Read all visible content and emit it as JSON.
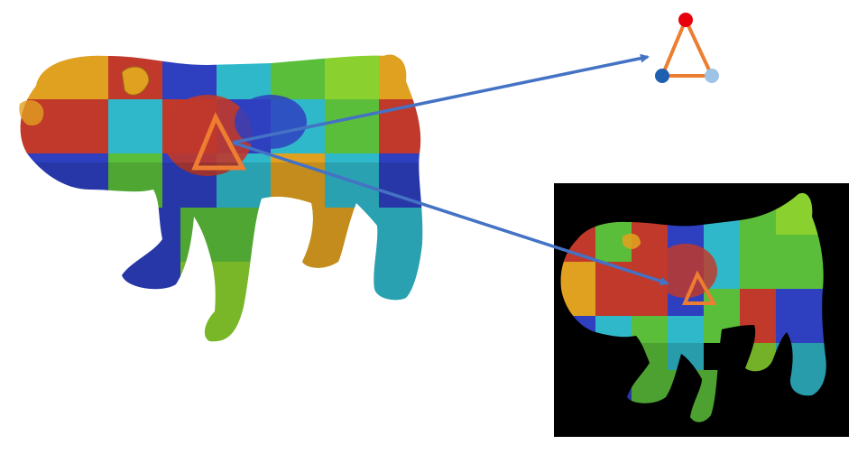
{
  "palette": {
    "marker": "#ED7D31",
    "arrow": "#4472C4",
    "vertex_top": "#E8000B",
    "vertex_left": "#1F5FAF",
    "vertex_right": "#9DC3E6",
    "inset_background": "#000000",
    "patch_colors": [
      "#C0392B",
      "#2E3FBF",
      "#2FB8C9",
      "#5BBE3A",
      "#E0A020",
      "#8AD12F"
    ]
  },
  "figure": {
    "subject": "textured-dog-mesh",
    "views": [
      "3d-model",
      "rendered-image"
    ],
    "texture_pattern": "checkerboard-patches"
  }
}
